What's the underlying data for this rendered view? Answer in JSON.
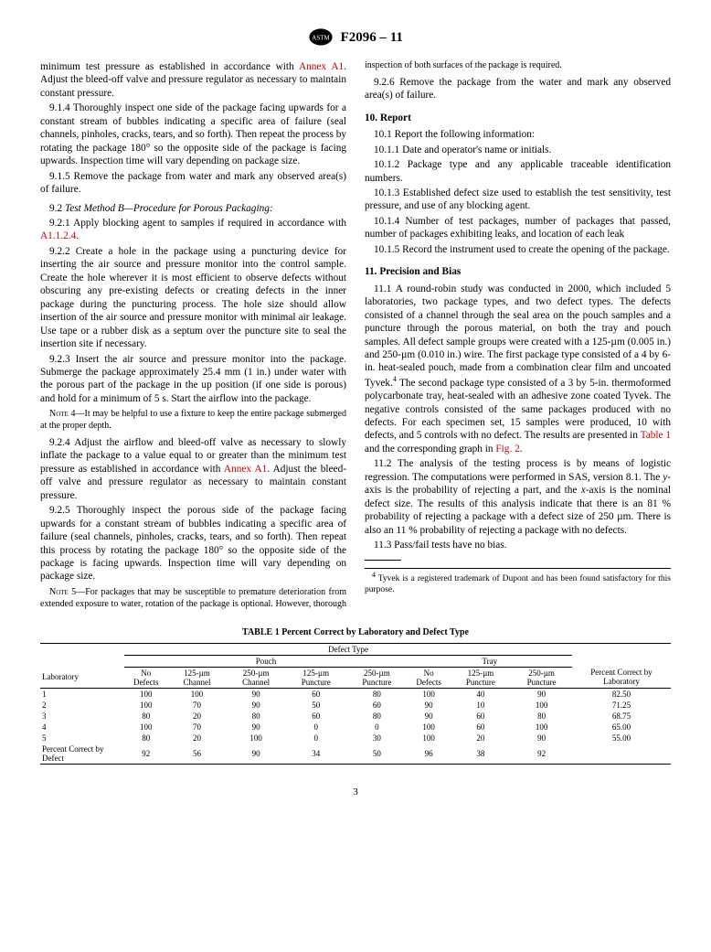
{
  "header": {
    "designation": "F2096 – 11"
  },
  "col1": {
    "p0a": "minimum test pressure as established in accordance with ",
    "p0link": "Annex A1",
    "p0b": ". Adjust the bleed-off valve and pressure regulator as necessary to maintain constant pressure.",
    "p914": "9.1.4 Thoroughly inspect one side of the package facing upwards for a constant stream of bubbles indicating a specific area of failure (seal channels, pinholes, cracks, tears, and so forth). Then repeat the process by rotating the package 180° so the opposite side of the package is facing upwards. Inspection time will vary depending on package size.",
    "p915": "9.1.5 Remove the package from water and mark any observed area(s) of failure.",
    "p92head": "9.2 ",
    "p92title": "Test Method B—Procedure for Porous Packaging:",
    "p921a": "9.2.1 Apply blocking agent to samples if required in accordance with ",
    "p921link": "A1.1.2.4",
    "p921b": ".",
    "p922": "9.2.2 Create a hole in the package using a puncturing device for inserting the air source and pressure monitor into the control sample. Create the hole wherever it is most efficient to observe defects without obscuring any pre-existing defects or creating defects in the inner package during the puncturing process. The hole size should allow insertion of the air source and pressure monitor with minimal air leakage. Use tape or a rubber disk as a septum over the puncture site to seal the insertion site if necessary.",
    "p923": "9.2.3 Insert the air source and pressure monitor into the package. Submerge the package approximately 25.4 mm (1 in.) under water with the porous part of the package in the up position (if one side is porous) and hold for a minimum of 5 s. Start the airflow into the package.",
    "note4label": "Note 4—",
    "note4": "It may be helpful to use a fixture to keep the entire package submerged at the proper depth.",
    "p924a": "9.2.4 Adjust the airflow and bleed-off valve as necessary to slowly inflate the package to a value equal to or greater than the minimum test pressure as established in accordance with ",
    "p924link": "Annex A1",
    "p924b": ". Adjust the bleed-off valve and pressure regulator as necessary to maintain constant pressure.",
    "p925": "9.2.5 Thoroughly inspect the porous side of the package facing upwards for a constant stream of bubbles indicating a specific area of failure (seal channels, pinholes, cracks, tears, and so forth). Then repeat this process by rotating the package 180° so the opposite side of the package is facing upwards. Inspection time will vary depending on package size.",
    "note5label": "Note 5—",
    "note5": "For packages that may be susceptible to premature deterioration from extended exposure to water, rotation of the package is optional. However, thorough inspection of both surfaces of the package is required."
  },
  "col2": {
    "p926": "9.2.6 Remove the package from the water and mark any observed area(s) of failure.",
    "s10head": "10. Report",
    "p101": "10.1 Report the following information:",
    "p1011": "10.1.1 Date and operator's name or initials.",
    "p1012": "10.1.2 Package type and any applicable traceable identification numbers.",
    "p1013": "10.1.3 Established defect size used to establish the test sensitivity, test pressure, and use of any blocking agent.",
    "p1014": "10.1.4 Number of test packages, number of packages that passed, number of packages exhibiting leaks, and location of each leak",
    "p1015": "10.1.5 Record the instrument used to create the opening of the package.",
    "s11head": "11. Precision and Bias",
    "p111a": "11.1 A round-robin study was conducted in 2000, which included 5 laboratories, two package types, and two defect types. The defects consisted of a channel through the seal area on the pouch samples and a puncture through the porous material, on both the tray and pouch samples. All defect sample groups were created with a 125-µm (0.005 in.) and 250-µm (0.010 in.) wire. The first package type consisted of a 4 by 6-in. heat-sealed pouch, made from a combination clear film and uncoated Tyvek.",
    "p111sup": "4",
    "p111b": " The second package type consisted of a 3 by 5-in. thermoformed polycarbonate tray, heat-sealed with an adhesive zone coated Tyvek. The negative controls consisted of the same packages produced with no defects. For each specimen set, 15 samples were produced, 10 with defects, and 5 controls with no defect. The results are presented in ",
    "p111link1": "Table 1",
    "p111c": " and the corresponding graph in ",
    "p111link2": "Fig. 2",
    "p111d": ".",
    "p112a": "11.2 The analysis of the testing process is by means of logistic regression. The computations were performed in SAS, version 8.1. The ",
    "p112y": "y",
    "p112b": "-axis is the probability of rejecting a part, and the ",
    "p112x": "x",
    "p112c": "-axis is the nominal defect size. The results of this analysis indicate that there is an 81 % probability of rejecting a package with a defect size of 250 µm. There is also an 11 % probability of rejecting a package with no defects.",
    "p113": "11.3 Pass/fail tests have no bias.",
    "fn4sup": "4",
    "fn4": " Tyvek is a registered trademark of Dupont and has been found satisfactory for this purpose."
  },
  "table": {
    "title": "TABLE 1 Percent Correct by Laboratory and Defect Type",
    "header_top": "Defect Type",
    "header_pouch": "Pouch",
    "header_tray": "Tray",
    "col_lab": "Laboratory",
    "col_nodef": "No Defects",
    "col_125ch": "125-µm Channel",
    "col_250ch": "250-µm Channel",
    "col_125pu": "125-µm Puncture",
    "col_250pu": "250-µm Puncture",
    "col_tray_nodef": "No Defects",
    "col_tray_125pu": "125-µm Puncture",
    "col_tray_250pu": "250-µm Puncture",
    "col_total": "Percent Correct by Laboratory",
    "rows": [
      [
        "1",
        "100",
        "100",
        "90",
        "60",
        "80",
        "100",
        "40",
        "90",
        "82.50"
      ],
      [
        "2",
        "100",
        "70",
        "90",
        "50",
        "60",
        "90",
        "10",
        "100",
        "71.25"
      ],
      [
        "3",
        "80",
        "20",
        "80",
        "60",
        "80",
        "90",
        "60",
        "80",
        "68.75"
      ],
      [
        "4",
        "100",
        "70",
        "90",
        "0",
        "0",
        "100",
        "60",
        "100",
        "65.00"
      ],
      [
        "5",
        "80",
        "20",
        "100",
        "0",
        "30",
        "100",
        "20",
        "90",
        "55.00"
      ]
    ],
    "footer_label": "Percent Correct by Defect",
    "footer": [
      "92",
      "56",
      "90",
      "34",
      "50",
      "96",
      "38",
      "92",
      ""
    ]
  },
  "page_number": "3"
}
